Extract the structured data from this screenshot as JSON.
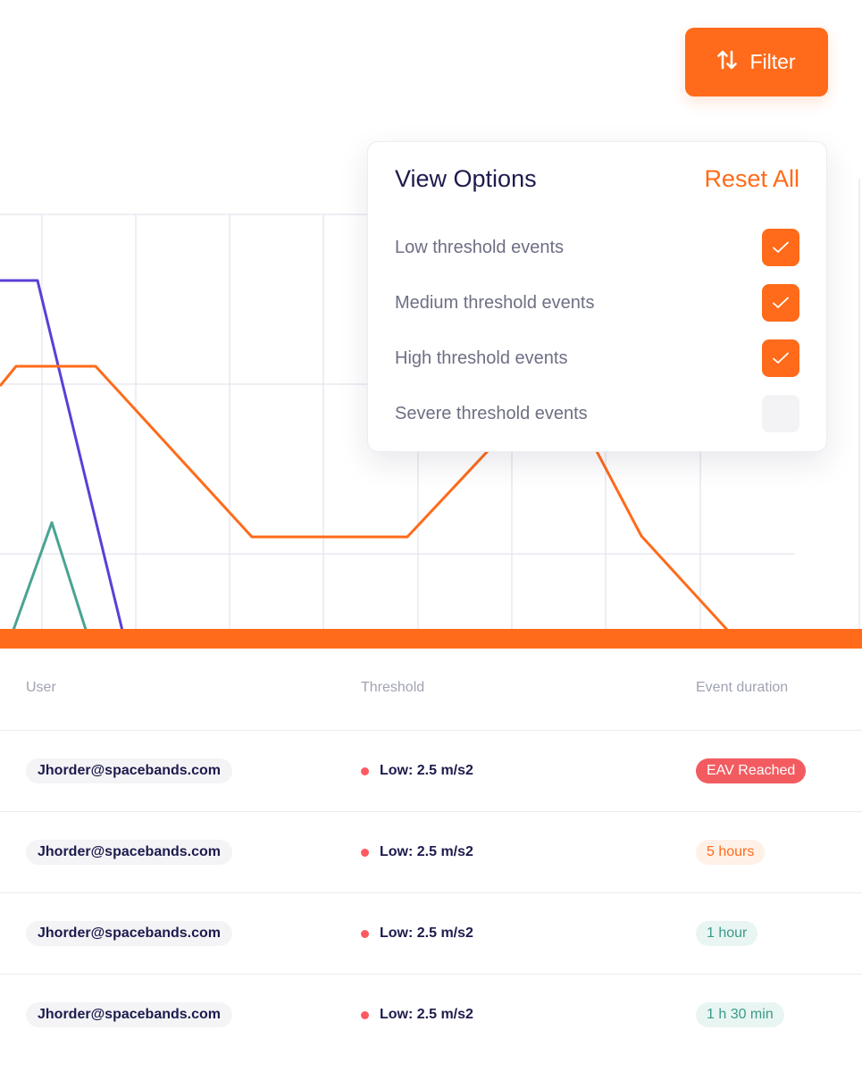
{
  "filter_button": {
    "label": "Filter"
  },
  "view_options": {
    "title": "View Options",
    "reset_label": "Reset All",
    "options": [
      {
        "label": "Low threshold events",
        "checked": true
      },
      {
        "label": "Medium threshold events",
        "checked": true
      },
      {
        "label": "High threshold events",
        "checked": true
      },
      {
        "label": "Severe threshold events",
        "checked": false
      }
    ]
  },
  "colors": {
    "accent": "#ff6b1a",
    "series_purple": "#5b3fd6",
    "series_orange": "#ff6b1a",
    "series_teal": "#4aa394",
    "grid": "#e8e8f0"
  },
  "table": {
    "headers": {
      "user": "User",
      "threshold": "Threshold",
      "duration": "Event duration"
    },
    "rows": [
      {
        "user": "Jhorder@spacebands.com",
        "threshold": "Low: 2.5 m/s2",
        "duration": "EAV Reached",
        "duration_style": "red"
      },
      {
        "user": "Jhorder@spacebands.com",
        "threshold": "Low: 2.5 m/s2",
        "duration": "5 hours",
        "duration_style": "orange"
      },
      {
        "user": "Jhorder@spacebands.com",
        "threshold": "Low: 2.5 m/s2",
        "duration": "1 hour",
        "duration_style": "teal"
      },
      {
        "user": "Jhorder@spacebands.com",
        "threshold": "Low: 2.5 m/s2",
        "duration": "1 h 30 min",
        "duration_style": "teal"
      }
    ]
  }
}
